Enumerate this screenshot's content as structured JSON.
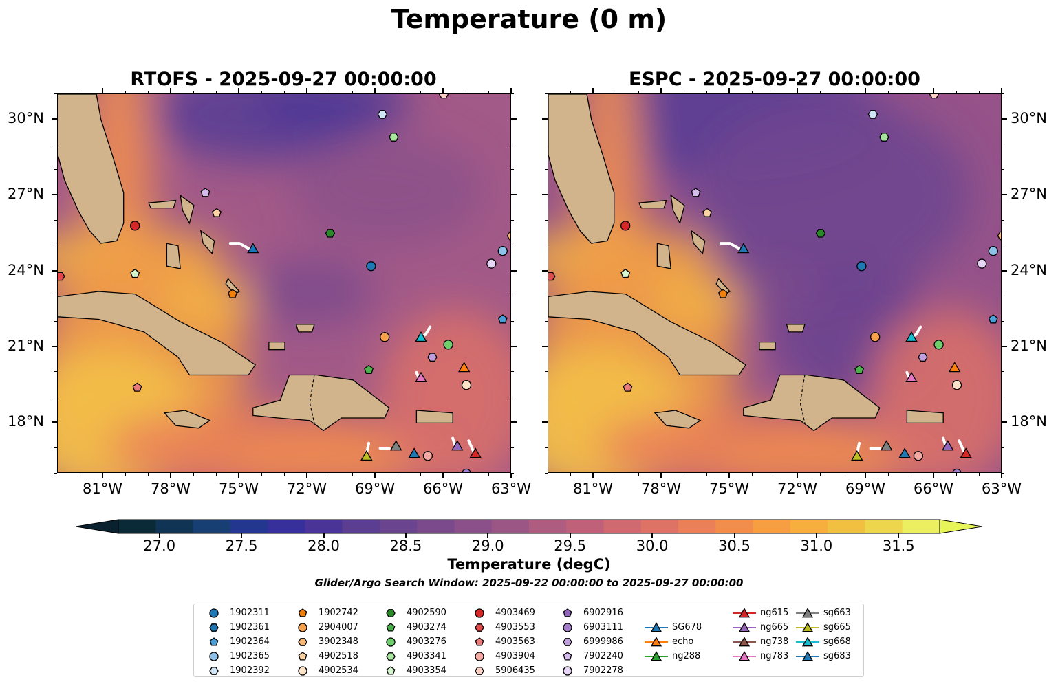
{
  "title": "Temperature (0 m)",
  "panels": [
    {
      "title": "RTOFS - 2025-09-27 00:00:00",
      "model": "RTOFS"
    },
    {
      "title": "ESPC - 2025-09-27 00:00:00",
      "model": "ESPC"
    }
  ],
  "map_extent": {
    "lon": [
      -83,
      -63
    ],
    "lat": [
      16,
      31
    ]
  },
  "lon_ticks": [
    {
      "value": -81,
      "label": "81°W"
    },
    {
      "value": -78,
      "label": "78°W"
    },
    {
      "value": -75,
      "label": "75°W"
    },
    {
      "value": -72,
      "label": "72°W"
    },
    {
      "value": -69,
      "label": "69°W"
    },
    {
      "value": -66,
      "label": "66°W"
    },
    {
      "value": -63,
      "label": "63°W"
    }
  ],
  "lat_ticks": [
    {
      "value": 30,
      "label": "30°N"
    },
    {
      "value": 27,
      "label": "27°N"
    },
    {
      "value": 24,
      "label": "24°N"
    },
    {
      "value": 21,
      "label": "21°N"
    },
    {
      "value": 18,
      "label": "18°N"
    }
  ],
  "colorbar": {
    "label": "Temperature (degC)",
    "min": 26.75,
    "max": 31.75,
    "ticks": [
      27.0,
      27.5,
      28.0,
      28.5,
      29.0,
      29.5,
      30.0,
      30.5,
      31.0,
      31.5
    ],
    "tick_labels": [
      "27.0",
      "27.5",
      "28.0",
      "28.5",
      "29.0",
      "29.5",
      "30.0",
      "30.5",
      "31.0",
      "31.5"
    ],
    "colors": [
      "#0b2a38",
      "#0f3454",
      "#183f74",
      "#24378f",
      "#372f9a",
      "#4a3596",
      "#5b3d92",
      "#6b448f",
      "#7a4a8c",
      "#8b508a",
      "#9c5686",
      "#ae5c80",
      "#bf6279",
      "#cf6a70",
      "#dd7364",
      "#e98058",
      "#f18e4d",
      "#f59e42",
      "#f6ae3c",
      "#f2c040",
      "#eed64c",
      "#ecf060"
    ],
    "under_color": "#0a2230",
    "over_color": "#e8f55a"
  },
  "search_window": "Glider/Argo Search Window: 2025-09-22 00:00:00 to 2025-09-27 00:00:00",
  "platforms": [
    {
      "name": "1902311",
      "marker": "circle",
      "color": "#1f77b4",
      "lon": -69.2,
      "lat": 24.2
    },
    {
      "name": "1902361",
      "marker": "hexagon",
      "color": "#1f77b4"
    },
    {
      "name": "1902364",
      "marker": "pentagon",
      "color": "#4c9fd6",
      "lon": -63.4,
      "lat": 22.1
    },
    {
      "name": "1902365",
      "marker": "circle",
      "color": "#8ec1e8",
      "lon": -63.4,
      "lat": 24.8
    },
    {
      "name": "1902392",
      "marker": "hexagon",
      "color": "#cfe5f5",
      "lon": -68.7,
      "lat": 30.2
    },
    {
      "name": "1902742",
      "marker": "pentagon",
      "color": "#f07f0c",
      "lon": -75.3,
      "lat": 23.1
    },
    {
      "name": "2904007",
      "marker": "circle",
      "color": "#f7a04a",
      "lon": -68.6,
      "lat": 21.4
    },
    {
      "name": "3902348",
      "marker": "hexagon",
      "color": "#f9b674",
      "lon": -63.0,
      "lat": 25.4
    },
    {
      "name": "4902518",
      "marker": "pentagon",
      "color": "#fbd3a5",
      "lon": -76.0,
      "lat": 26.3
    },
    {
      "name": "4902534",
      "marker": "circle",
      "color": "#fde3c7",
      "lon": -65.0,
      "lat": 19.5
    },
    {
      "name": "4902590",
      "marker": "hexagon",
      "color": "#2a8a2a",
      "lon": -71.0,
      "lat": 25.5
    },
    {
      "name": "4903274",
      "marker": "pentagon",
      "color": "#4cb04c",
      "lon": -69.3,
      "lat": 20.1
    },
    {
      "name": "4903276",
      "marker": "circle",
      "color": "#6fcf6f",
      "lon": -65.8,
      "lat": 21.1
    },
    {
      "name": "4903341",
      "marker": "hexagon",
      "color": "#a8e6a0",
      "lon": -68.2,
      "lat": 29.3
    },
    {
      "name": "4903354",
      "marker": "pentagon",
      "color": "#d6f5cf",
      "lon": -79.6,
      "lat": 23.9
    },
    {
      "name": "4903469",
      "marker": "circle",
      "color": "#d62728",
      "lon": -79.6,
      "lat": 25.8
    },
    {
      "name": "4903553",
      "marker": "hexagon",
      "color": "#e04a4a",
      "lon": -82.9,
      "lat": 23.8
    },
    {
      "name": "4903563",
      "marker": "pentagon",
      "color": "#eb7a7a",
      "lon": -79.5,
      "lat": 19.4
    },
    {
      "name": "4903904",
      "marker": "circle",
      "color": "#f5a9a3",
      "lon": -66.7,
      "lat": 16.7
    },
    {
      "name": "5906435",
      "marker": "hexagon",
      "color": "#fbd0c6",
      "lon": -66.0,
      "lat": 31.0
    },
    {
      "name": "6902916",
      "marker": "pentagon",
      "color": "#8e63b8"
    },
    {
      "name": "6903111",
      "marker": "circle",
      "color": "#a57ec9",
      "lon": -65.0,
      "lat": 16.0
    },
    {
      "name": "6999986",
      "marker": "hexagon",
      "color": "#bfa0dc",
      "lon": -66.5,
      "lat": 20.6
    },
    {
      "name": "7902240",
      "marker": "pentagon",
      "color": "#d4bcec",
      "lon": -76.5,
      "lat": 27.1
    },
    {
      "name": "7902278",
      "marker": "circle",
      "color": "#e6d5f5",
      "lon": -63.9,
      "lat": 24.3
    },
    {
      "name": "SG678",
      "marker": "triangle",
      "line": true,
      "color": "#1f77b4"
    },
    {
      "name": "echo",
      "marker": "triangle",
      "line": true,
      "color": "#ff7f0e",
      "lon": -65.1,
      "lat": 20.2
    },
    {
      "name": "ng288",
      "marker": "triangle",
      "line": true,
      "color": "#2ca02c"
    },
    {
      "name": "ng615",
      "marker": "triangle",
      "line": true,
      "color": "#d62728",
      "lon": -64.6,
      "lat": 16.8
    },
    {
      "name": "ng665",
      "marker": "triangle",
      "line": true,
      "color": "#9467bd",
      "lon": -65.4,
      "lat": 17.1
    },
    {
      "name": "ng738",
      "marker": "triangle",
      "line": true,
      "color": "#8c564b"
    },
    {
      "name": "ng783",
      "marker": "triangle",
      "line": true,
      "color": "#e377c2",
      "lon": -67.0,
      "lat": 19.8
    },
    {
      "name": "sg663",
      "marker": "triangle",
      "line": true,
      "color": "#7f7f7f",
      "lon": -68.1,
      "lat": 17.1
    },
    {
      "name": "sg665",
      "marker": "triangle",
      "line": true,
      "color": "#bcbd22",
      "lon": -69.4,
      "lat": 16.7
    },
    {
      "name": "sg668",
      "marker": "triangle",
      "line": true,
      "color": "#17becf",
      "lon": -67.0,
      "lat": 21.4
    },
    {
      "name": "sg683",
      "marker": "triangle",
      "line": true,
      "color": "#1f77b4",
      "lon": -67.3,
      "lat": 16.8
    }
  ],
  "extra_markers": [
    {
      "name": "SG678",
      "marker": "triangle",
      "color": "#1f77b4",
      "lon": -74.4,
      "lat": 24.9
    }
  ]
}
